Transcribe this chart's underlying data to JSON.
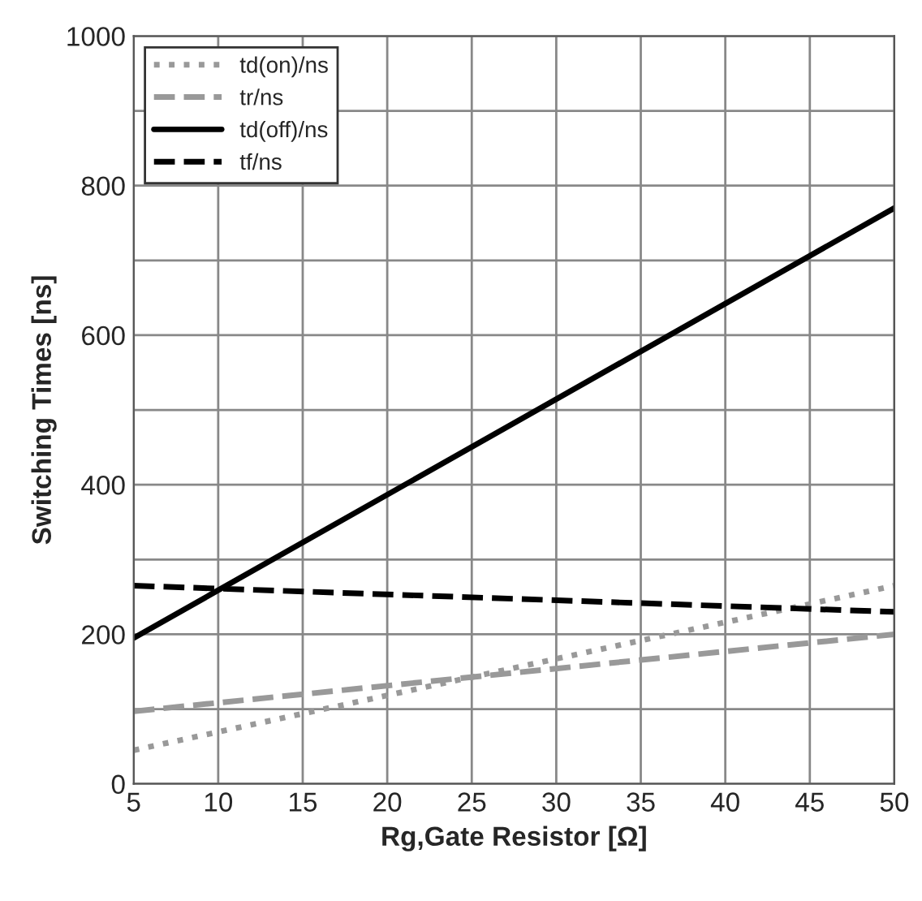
{
  "chart_data": {
    "type": "line",
    "xlabel": "Rg,Gate Resistor [Ω]",
    "ylabel": "Switching Times [ns]",
    "x": [
      5,
      50
    ],
    "series": [
      {
        "name": "td(on)/ns",
        "color": "#999999",
        "line_style": "dotted",
        "values": [
          45,
          265
        ]
      },
      {
        "name": "tr/ns",
        "color": "#999999",
        "line_style": "dashed",
        "values": [
          97,
          200
        ]
      },
      {
        "name": "td(off)/ns",
        "color": "#000000",
        "line_style": "solid",
        "values": [
          195,
          770
        ]
      },
      {
        "name": "tf/ns",
        "color": "#000000",
        "line_style": "dashed",
        "values": [
          265,
          230
        ]
      }
    ],
    "xlim": [
      5,
      50
    ],
    "xticks": [
      5,
      10,
      15,
      20,
      25,
      30,
      35,
      40,
      45,
      50
    ],
    "ylim": [
      0,
      1000
    ],
    "yticks": [
      0,
      {
        "value": 100,
        "label": null
      },
      200,
      {
        "value": 300,
        "label": null
      },
      400,
      {
        "value": 500,
        "label": null
      },
      600,
      {
        "value": 700,
        "label": null
      },
      800,
      {
        "value": 900,
        "label": null
      },
      1000
    ],
    "grid": true,
    "legend": "top left"
  }
}
